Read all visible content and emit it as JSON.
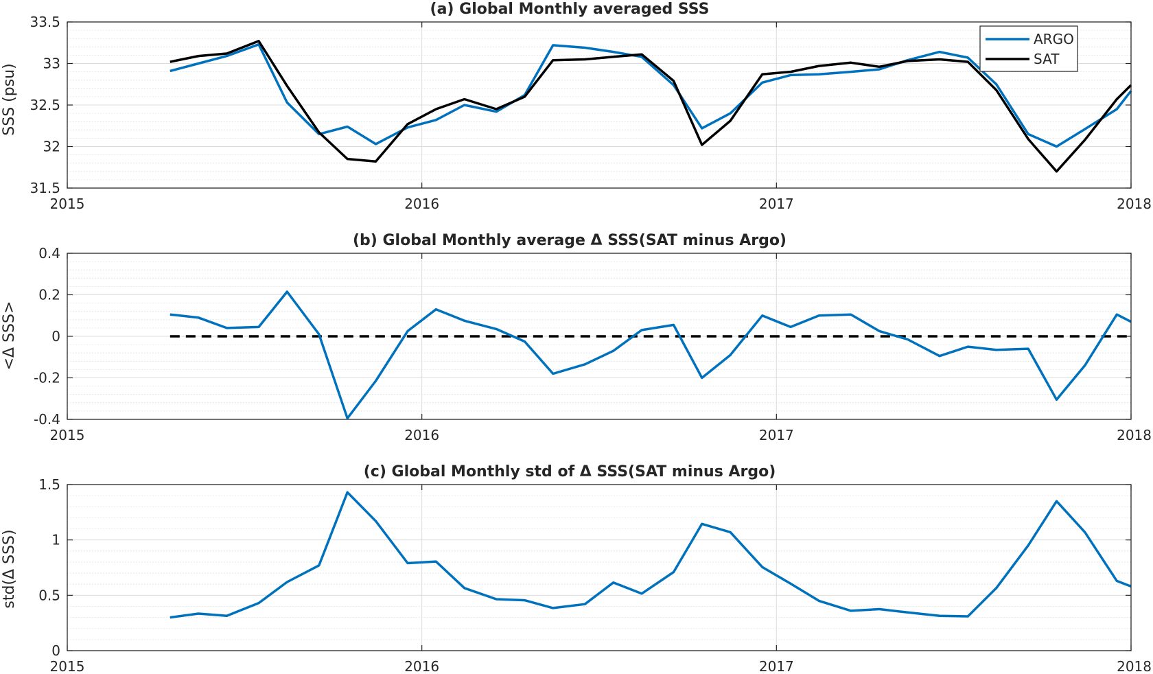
{
  "chart_data": [
    {
      "type": "line",
      "title": "(a) Global Monthly averaged SSS",
      "xlabel": "",
      "ylabel": "SSS (psu)",
      "xlim": [
        2015,
        2018
      ],
      "ylim": [
        31.5,
        33.5
      ],
      "xticks": [
        2015,
        2016,
        2017,
        2018
      ],
      "xtick_labels": [
        "2015",
        "2016",
        "2017",
        "2018"
      ],
      "yticks": [
        31.5,
        32,
        32.5,
        33,
        33.5
      ],
      "ytick_labels": [
        "31.5",
        "32",
        "32.5",
        "33",
        "33.5"
      ],
      "grid": "on",
      "legend": "top-right",
      "x": [
        2015.29,
        2015.37,
        2015.45,
        2015.54,
        2015.62,
        2015.71,
        2015.79,
        2015.87,
        2015.96,
        2016.04,
        2016.12,
        2016.21,
        2016.29,
        2016.37,
        2016.46,
        2016.54,
        2016.62,
        2016.71,
        2016.79,
        2016.87,
        2016.96,
        2017.04,
        2017.12,
        2017.21,
        2017.29,
        2017.37,
        2017.46,
        2017.54,
        2017.62,
        2017.71,
        2017.79,
        2017.87,
        2017.96,
        2018.0
      ],
      "series": [
        {
          "name": "ARGO",
          "color": "#0072BD",
          "values": [
            32.91,
            33.0,
            33.09,
            33.23,
            32.53,
            32.15,
            32.24,
            32.03,
            32.23,
            32.32,
            32.5,
            32.42,
            32.62,
            33.22,
            33.19,
            33.14,
            33.08,
            32.74,
            32.22,
            32.4,
            32.77,
            32.86,
            32.87,
            32.9,
            32.93,
            33.04,
            33.14,
            33.07,
            32.75,
            32.15,
            32.0,
            32.21,
            32.45,
            32.67
          ]
        },
        {
          "name": "SAT",
          "color": "#000000",
          "values": [
            33.02,
            33.09,
            33.12,
            33.27,
            32.73,
            32.17,
            31.85,
            31.82,
            32.27,
            32.45,
            32.57,
            32.45,
            32.6,
            33.04,
            33.05,
            33.08,
            33.11,
            32.79,
            32.02,
            32.31,
            32.87,
            32.9,
            32.97,
            33.01,
            32.96,
            33.03,
            33.05,
            33.02,
            32.68,
            32.09,
            31.7,
            32.08,
            32.57,
            32.74
          ]
        }
      ]
    },
    {
      "type": "line",
      "title": "(b) Global Monthly average Δ SSS(SAT minus Argo)",
      "xlabel": "",
      "ylabel": "<Δ SSS>",
      "xlim": [
        2015,
        2018
      ],
      "ylim": [
        -0.4,
        0.4
      ],
      "xticks": [
        2015,
        2016,
        2017,
        2018
      ],
      "xtick_labels": [
        "2015",
        "2016",
        "2017",
        "2018"
      ],
      "yticks": [
        -0.4,
        -0.2,
        0,
        0.2,
        0.4
      ],
      "ytick_labels": [
        "-0.4",
        "-0.2",
        "0",
        "0.2",
        "0.4"
      ],
      "grid": "on",
      "reference_line": {
        "y": 0,
        "style": "dashed",
        "color": "#000000",
        "x_start": 2015.29
      },
      "x": [
        2015.29,
        2015.37,
        2015.45,
        2015.54,
        2015.62,
        2015.71,
        2015.79,
        2015.87,
        2015.96,
        2016.04,
        2016.12,
        2016.21,
        2016.29,
        2016.37,
        2016.46,
        2016.54,
        2016.62,
        2016.71,
        2016.79,
        2016.87,
        2016.96,
        2017.04,
        2017.12,
        2017.21,
        2017.29,
        2017.37,
        2017.46,
        2017.54,
        2017.62,
        2017.71,
        2017.79,
        2017.87,
        2017.96,
        2018.0
      ],
      "series": [
        {
          "color": "#0072BD",
          "values": [
            0.105,
            0.09,
            0.04,
            0.045,
            0.215,
            0.01,
            -0.395,
            -0.215,
            0.025,
            0.13,
            0.075,
            0.035,
            -0.025,
            -0.18,
            -0.135,
            -0.07,
            0.03,
            0.055,
            -0.2,
            -0.09,
            0.1,
            0.045,
            0.1,
            0.105,
            0.025,
            -0.015,
            -0.095,
            -0.05,
            -0.065,
            -0.06,
            -0.305,
            -0.14,
            0.105,
            0.07
          ]
        }
      ]
    },
    {
      "type": "line",
      "title": "(c) Global Monthly std of Δ SSS(SAT minus Argo)",
      "xlabel": "",
      "ylabel": "std(Δ SSS)",
      "xlim": [
        2015,
        2018
      ],
      "ylim": [
        0,
        1.5
      ],
      "xticks": [
        2015,
        2016,
        2017,
        2018
      ],
      "xtick_labels": [
        "2015",
        "2016",
        "2017",
        "2018"
      ],
      "yticks": [
        0,
        0.5,
        1,
        1.5
      ],
      "ytick_labels": [
        "0",
        "0.5",
        "1",
        "1.5"
      ],
      "grid": "on",
      "x": [
        2015.29,
        2015.37,
        2015.45,
        2015.54,
        2015.62,
        2015.71,
        2015.79,
        2015.87,
        2015.96,
        2016.04,
        2016.12,
        2016.21,
        2016.29,
        2016.37,
        2016.46,
        2016.54,
        2016.62,
        2016.71,
        2016.79,
        2016.87,
        2016.96,
        2017.04,
        2017.12,
        2017.21,
        2017.29,
        2017.37,
        2017.46,
        2017.54,
        2017.62,
        2017.71,
        2017.79,
        2017.87,
        2017.96,
        2018.0
      ],
      "series": [
        {
          "color": "#0072BD",
          "values": [
            0.3,
            0.335,
            0.315,
            0.43,
            0.62,
            0.77,
            1.43,
            1.17,
            0.79,
            0.805,
            0.565,
            0.465,
            0.455,
            0.385,
            0.42,
            0.615,
            0.515,
            0.71,
            1.145,
            1.07,
            0.755,
            0.605,
            0.45,
            0.36,
            0.375,
            0.345,
            0.315,
            0.31,
            0.565,
            0.95,
            1.35,
            1.07,
            0.63,
            0.58
          ]
        }
      ]
    }
  ]
}
